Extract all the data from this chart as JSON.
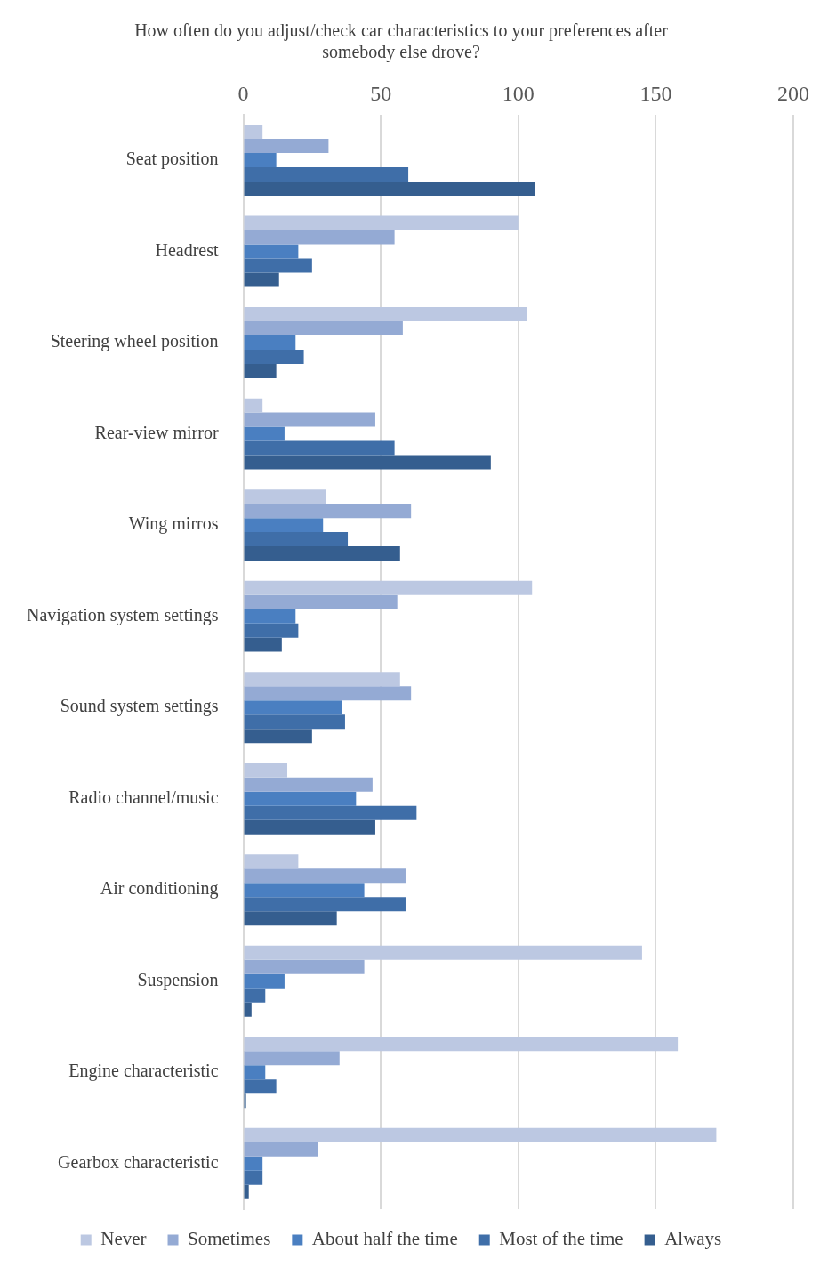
{
  "chart_data": {
    "type": "bar",
    "orientation": "horizontal",
    "title": "How often do you adjust/check car characteristics to your preferences after somebody else drove?",
    "categories": [
      "Seat position",
      "Headrest",
      "Steering wheel position",
      "Rear-view mirror",
      "Wing mirros",
      "Navigation system settings",
      "Sound system settings",
      "Radio channel/music",
      "Air conditioning",
      "Suspension",
      "Engine characteristic",
      "Gearbox characteristic"
    ],
    "series": [
      {
        "name": "Never",
        "color": "#bcc8e2",
        "values": [
          7,
          100,
          103,
          7,
          30,
          105,
          57,
          16,
          20,
          145,
          158,
          172
        ]
      },
      {
        "name": "Sometimes",
        "color": "#94aad4",
        "values": [
          31,
          55,
          58,
          48,
          61,
          56,
          61,
          47,
          59,
          44,
          35,
          27
        ]
      },
      {
        "name": "About half the time",
        "color": "#4a7fc1",
        "values": [
          12,
          20,
          19,
          15,
          29,
          19,
          36,
          41,
          44,
          15,
          8,
          7
        ]
      },
      {
        "name": "Most of the time",
        "color": "#3f6ea8",
        "values": [
          60,
          25,
          22,
          55,
          38,
          20,
          37,
          63,
          59,
          8,
          12,
          7
        ]
      },
      {
        "name": "Always",
        "color": "#355e8f",
        "values": [
          106,
          13,
          12,
          90,
          57,
          14,
          25,
          48,
          34,
          3,
          1,
          2
        ]
      }
    ],
    "xlim": [
      0,
      200
    ],
    "xticks": [
      0,
      50,
      100,
      150,
      200
    ],
    "grid": "x",
    "legend": "bottom"
  }
}
